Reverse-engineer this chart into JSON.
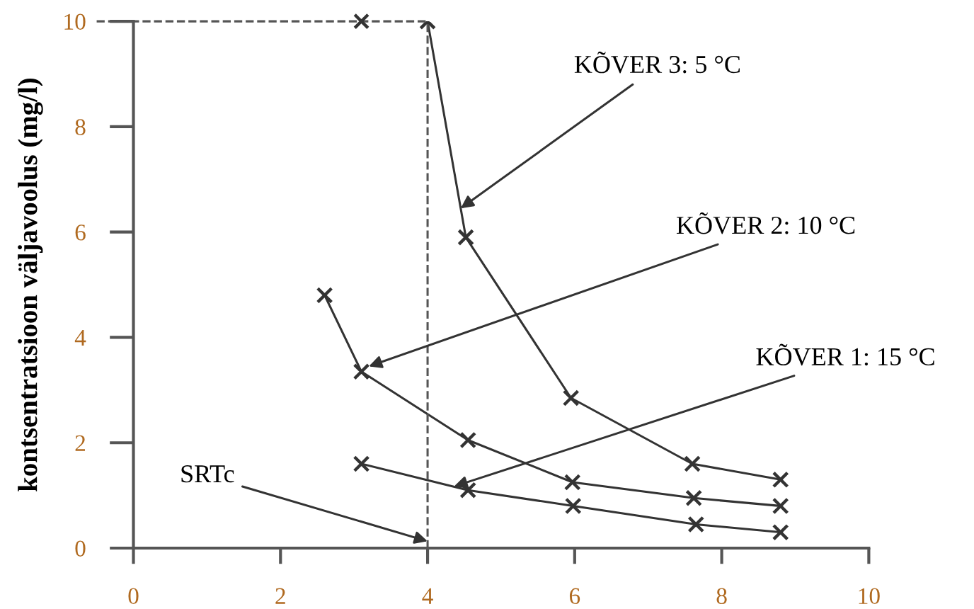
{
  "chart_data": {
    "type": "line",
    "ylabel": "kontsentratsioon väljavoolus (mg/l)",
    "xlim": [
      0,
      10
    ],
    "ylim": [
      0,
      10
    ],
    "xticks": [
      0,
      2,
      4,
      6,
      8,
      10
    ],
    "yticks": [
      0,
      2,
      4,
      6,
      8,
      10
    ],
    "grid": false,
    "marker": "cross",
    "line_style": "solid",
    "series": [
      {
        "color": "#333333",
        "x": [
          4.0,
          4.52,
          5.95,
          7.6,
          8.8
        ],
        "values": [
          10,
          5.9,
          2.85,
          1.6,
          1.3
        ]
      },
      {
        "color": "#333333",
        "x": [
          2.6,
          3.1,
          4.55,
          5.97,
          7.62,
          8.8
        ],
        "values": [
          4.8,
          3.35,
          2.05,
          1.25,
          0.95,
          0.8
        ]
      },
      {
        "color": "#333333",
        "x": [
          3.1,
          4.55,
          5.98,
          7.65,
          8.8
        ],
        "values": [
          1.6,
          1.1,
          0.8,
          0.45,
          0.3
        ]
      },
      {
        "type": "scatter",
        "color": "#333333",
        "x": [
          3.1
        ],
        "values": [
          10
        ]
      }
    ],
    "ref_lines": [
      {
        "axis": "x",
        "value": 4,
        "color": "#555555",
        "line_style": "dashed"
      },
      {
        "axis": "y",
        "value": 10,
        "color": "#555555",
        "line_style": "dashed"
      }
    ],
    "annotations": [
      {
        "text": "KÕVER 3: 5 °C",
        "x": 4.45,
        "y": 6.45
      },
      {
        "text": "KÕVER 2: 10 °C",
        "x": 3.2,
        "y": 3.45
      },
      {
        "text": "KÕVER 1: 15 °C",
        "x": 4.36,
        "y": 1.17
      },
      {
        "text": "SRTc",
        "x": 4,
        "y": 0.13
      }
    ]
  }
}
